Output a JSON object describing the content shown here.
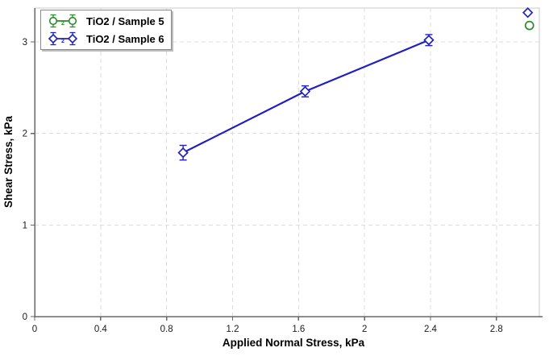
{
  "chart_data": {
    "type": "line",
    "title": "",
    "xlabel": "Applied Normal Stress, kPa",
    "ylabel": "Shear Stress, kPa",
    "xlim": [
      0,
      3.06
    ],
    "ylim": [
      0,
      3.37
    ],
    "xtick_values": [
      0,
      0.4,
      0.8,
      1.2,
      1.6,
      2.0,
      2.4,
      2.8
    ],
    "xtick_labels": [
      "0",
      "0.4",
      "0.8",
      "1.2",
      "1.6",
      "2",
      "2.4",
      "2.8"
    ],
    "ytick_values": [
      0,
      1,
      2,
      3
    ],
    "ytick_labels": [
      "0",
      "1",
      "2",
      "3"
    ],
    "grid": {
      "style": "dashed",
      "which": "major",
      "axes": "both"
    },
    "legend": {
      "position": "top-left",
      "errorbar_marker_text": "2"
    },
    "series": [
      {
        "name": "TiO2 / Sample 5",
        "marker": "circle",
        "color": "#2a8c2a",
        "line_points": [],
        "isolated_points": [
          {
            "x": 3.0,
            "y": 3.18
          }
        ]
      },
      {
        "name": "TiO2 / Sample 6",
        "marker": "diamond",
        "color": "#2020c0",
        "line_points": [
          {
            "x": 0.9,
            "y": 1.79,
            "yerr": 0.08
          },
          {
            "x": 1.64,
            "y": 2.46,
            "yerr": 0.06
          },
          {
            "x": 2.39,
            "y": 3.02,
            "yerr": 0.06
          }
        ],
        "isolated_points": [
          {
            "x": 2.99,
            "y": 3.32
          }
        ]
      }
    ],
    "colors": {
      "background": "#ffffff",
      "frame": "#c9c9c9",
      "grid": "#dcdcdc",
      "axis": "#676767",
      "tick_text": "#1a1a1a",
      "label_text": "#000000"
    }
  }
}
